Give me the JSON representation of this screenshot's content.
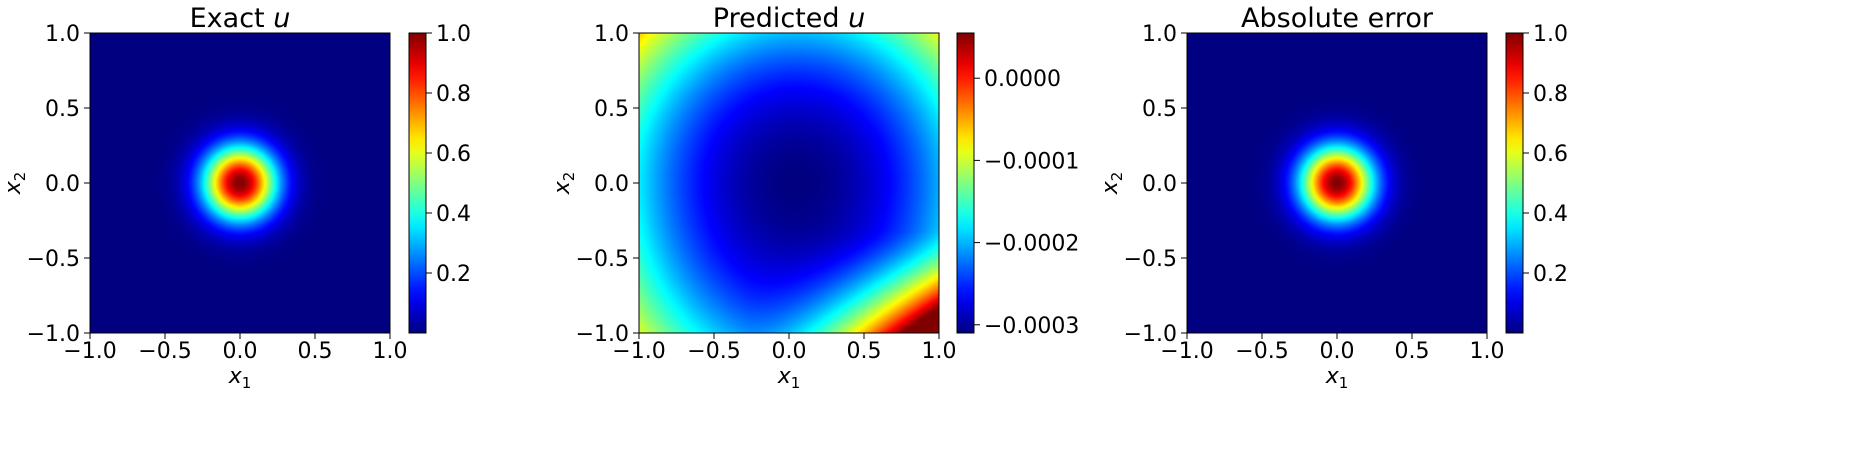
{
  "chart_data": [
    {
      "type": "heatmap",
      "title": "Exact",
      "title_var": "u",
      "xlabel": "x",
      "xlabel_sub": "1",
      "ylabel": "x",
      "ylabel_sub": "2",
      "xlim": [
        -1.0,
        1.0
      ],
      "ylim": [
        -1.0,
        1.0
      ],
      "xticks": [
        -1.0,
        -0.5,
        0.0,
        0.5,
        1.0
      ],
      "xtick_labels": [
        "−1.0",
        "−0.5",
        "0.0",
        "0.5",
        "1.0"
      ],
      "yticks": [
        -1.0,
        -0.5,
        0.0,
        0.5,
        1.0
      ],
      "ytick_labels": [
        "−1.0",
        "−0.5",
        "0.0",
        "0.5",
        "1.0"
      ],
      "colormap": "jet",
      "field": {
        "kind": "gaussian",
        "center": [
          0.0,
          0.0
        ],
        "amplitude": 1.0,
        "sigma": 0.17
      },
      "colorbar": {
        "min": 0.0,
        "max": 1.0,
        "ticks": [
          0.2,
          0.4,
          0.6,
          0.8,
          1.0
        ],
        "tick_labels": [
          "0.2",
          "0.4",
          "0.6",
          "0.8",
          "1.0"
        ]
      }
    },
    {
      "type": "heatmap",
      "title": "Predicted",
      "title_var": "u",
      "xlabel": "x",
      "xlabel_sub": "1",
      "ylabel": "x",
      "ylabel_sub": "2",
      "xlim": [
        -1.0,
        1.0
      ],
      "ylim": [
        -1.0,
        1.0
      ],
      "xticks": [
        -1.0,
        -0.5,
        0.0,
        0.5,
        1.0
      ],
      "xtick_labels": [
        "−1.0",
        "−0.5",
        "0.0",
        "0.5",
        "1.0"
      ],
      "yticks": [
        -1.0,
        -0.5,
        0.0,
        0.5,
        1.0
      ],
      "ytick_labels": [
        "−1.0",
        "−0.5",
        "0.0",
        "0.5",
        "1.0"
      ],
      "colormap": "jet",
      "field": {
        "kind": "bowl",
        "minimum": -0.00031,
        "min_location": [
          0.05,
          0.0
        ],
        "top_edge_value": -0.00019,
        "corner_max": 5.5e-05
      },
      "colorbar": {
        "min": -0.00031,
        "max": 5.5e-05,
        "ticks": [
          -0.0003,
          -0.0002,
          -0.0001,
          0.0
        ],
        "tick_labels": [
          "−0.0003",
          "−0.0002",
          "−0.0001",
          "0.0000"
        ]
      }
    },
    {
      "type": "heatmap",
      "title": "Absolute error",
      "title_var": "",
      "xlabel": "x",
      "xlabel_sub": "1",
      "ylabel": "x",
      "ylabel_sub": "2",
      "xlim": [
        -1.0,
        1.0
      ],
      "ylim": [
        -1.0,
        1.0
      ],
      "xticks": [
        -1.0,
        -0.5,
        0.0,
        0.5,
        1.0
      ],
      "xtick_labels": [
        "−1.0",
        "−0.5",
        "0.0",
        "0.5",
        "1.0"
      ],
      "yticks": [
        -1.0,
        -0.5,
        0.0,
        0.5,
        1.0
      ],
      "ytick_labels": [
        "−1.0",
        "−0.5",
        "0.0",
        "0.5",
        "1.0"
      ],
      "colormap": "jet",
      "field": {
        "kind": "gaussian",
        "center": [
          0.0,
          0.0
        ],
        "amplitude": 1.0,
        "sigma": 0.17
      },
      "colorbar": {
        "min": 0.0,
        "max": 1.0,
        "ticks": [
          0.2,
          0.4,
          0.6,
          0.8,
          1.0
        ],
        "tick_labels": [
          "0.2",
          "0.4",
          "0.6",
          "0.8",
          "1.0"
        ]
      }
    }
  ]
}
